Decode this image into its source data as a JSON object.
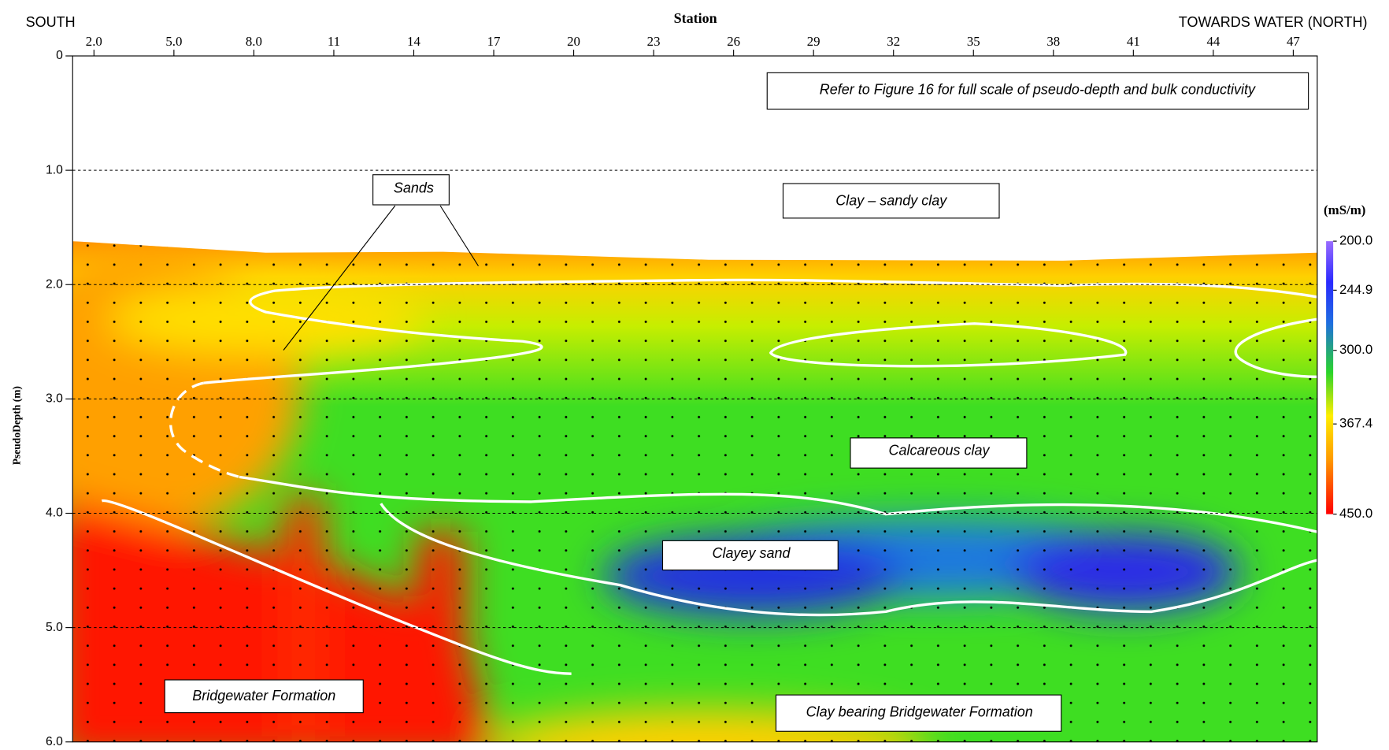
{
  "chart_data": {
    "type": "heatmap",
    "x_label": "Station",
    "y_label": "PseudoDepth (m)",
    "left_label": "SOUTH",
    "right_label": "TOWARDS WATER (NORTH)",
    "xlim": [
      1.2,
      47.9
    ],
    "xticks": [
      {
        "value": 2,
        "label": "2.0"
      },
      {
        "value": 5,
        "label": "5.0"
      },
      {
        "value": 8,
        "label": "8.0"
      },
      11,
      14,
      17,
      20,
      23,
      26,
      29,
      32,
      35,
      38,
      41,
      44,
      47
    ],
    "ylim": [
      0,
      6
    ],
    "y_inverted": true,
    "yticks": [
      0,
      {
        "value": 1,
        "label": "1.0"
      },
      {
        "value": 2,
        "label": "2.0"
      },
      {
        "value": 3,
        "label": "3.0"
      },
      {
        "value": 4,
        "label": "4.0"
      },
      {
        "value": 5,
        "label": "5.0"
      },
      {
        "value": 6,
        "label": "6.0"
      }
    ],
    "grid": true,
    "colorbar": {
      "label": "(mS/m)",
      "lim": [
        200,
        450
      ],
      "ticks": [
        {
          "value": 200,
          "label": "200.0"
        },
        244.9,
        {
          "value": 300,
          "label": "300.0"
        },
        367.4,
        {
          "value": 450,
          "label": "450.0"
        }
      ]
    },
    "annotations": [
      "Refer to Figure 16 for full scale of pseudo-depth and bulk conductivity",
      "Sands",
      "Clay – sandy clay",
      "Calcareous clay",
      "Clayey sand",
      "Bridgewater Formation",
      "Clay bearing Bridgewater Formation"
    ]
  }
}
